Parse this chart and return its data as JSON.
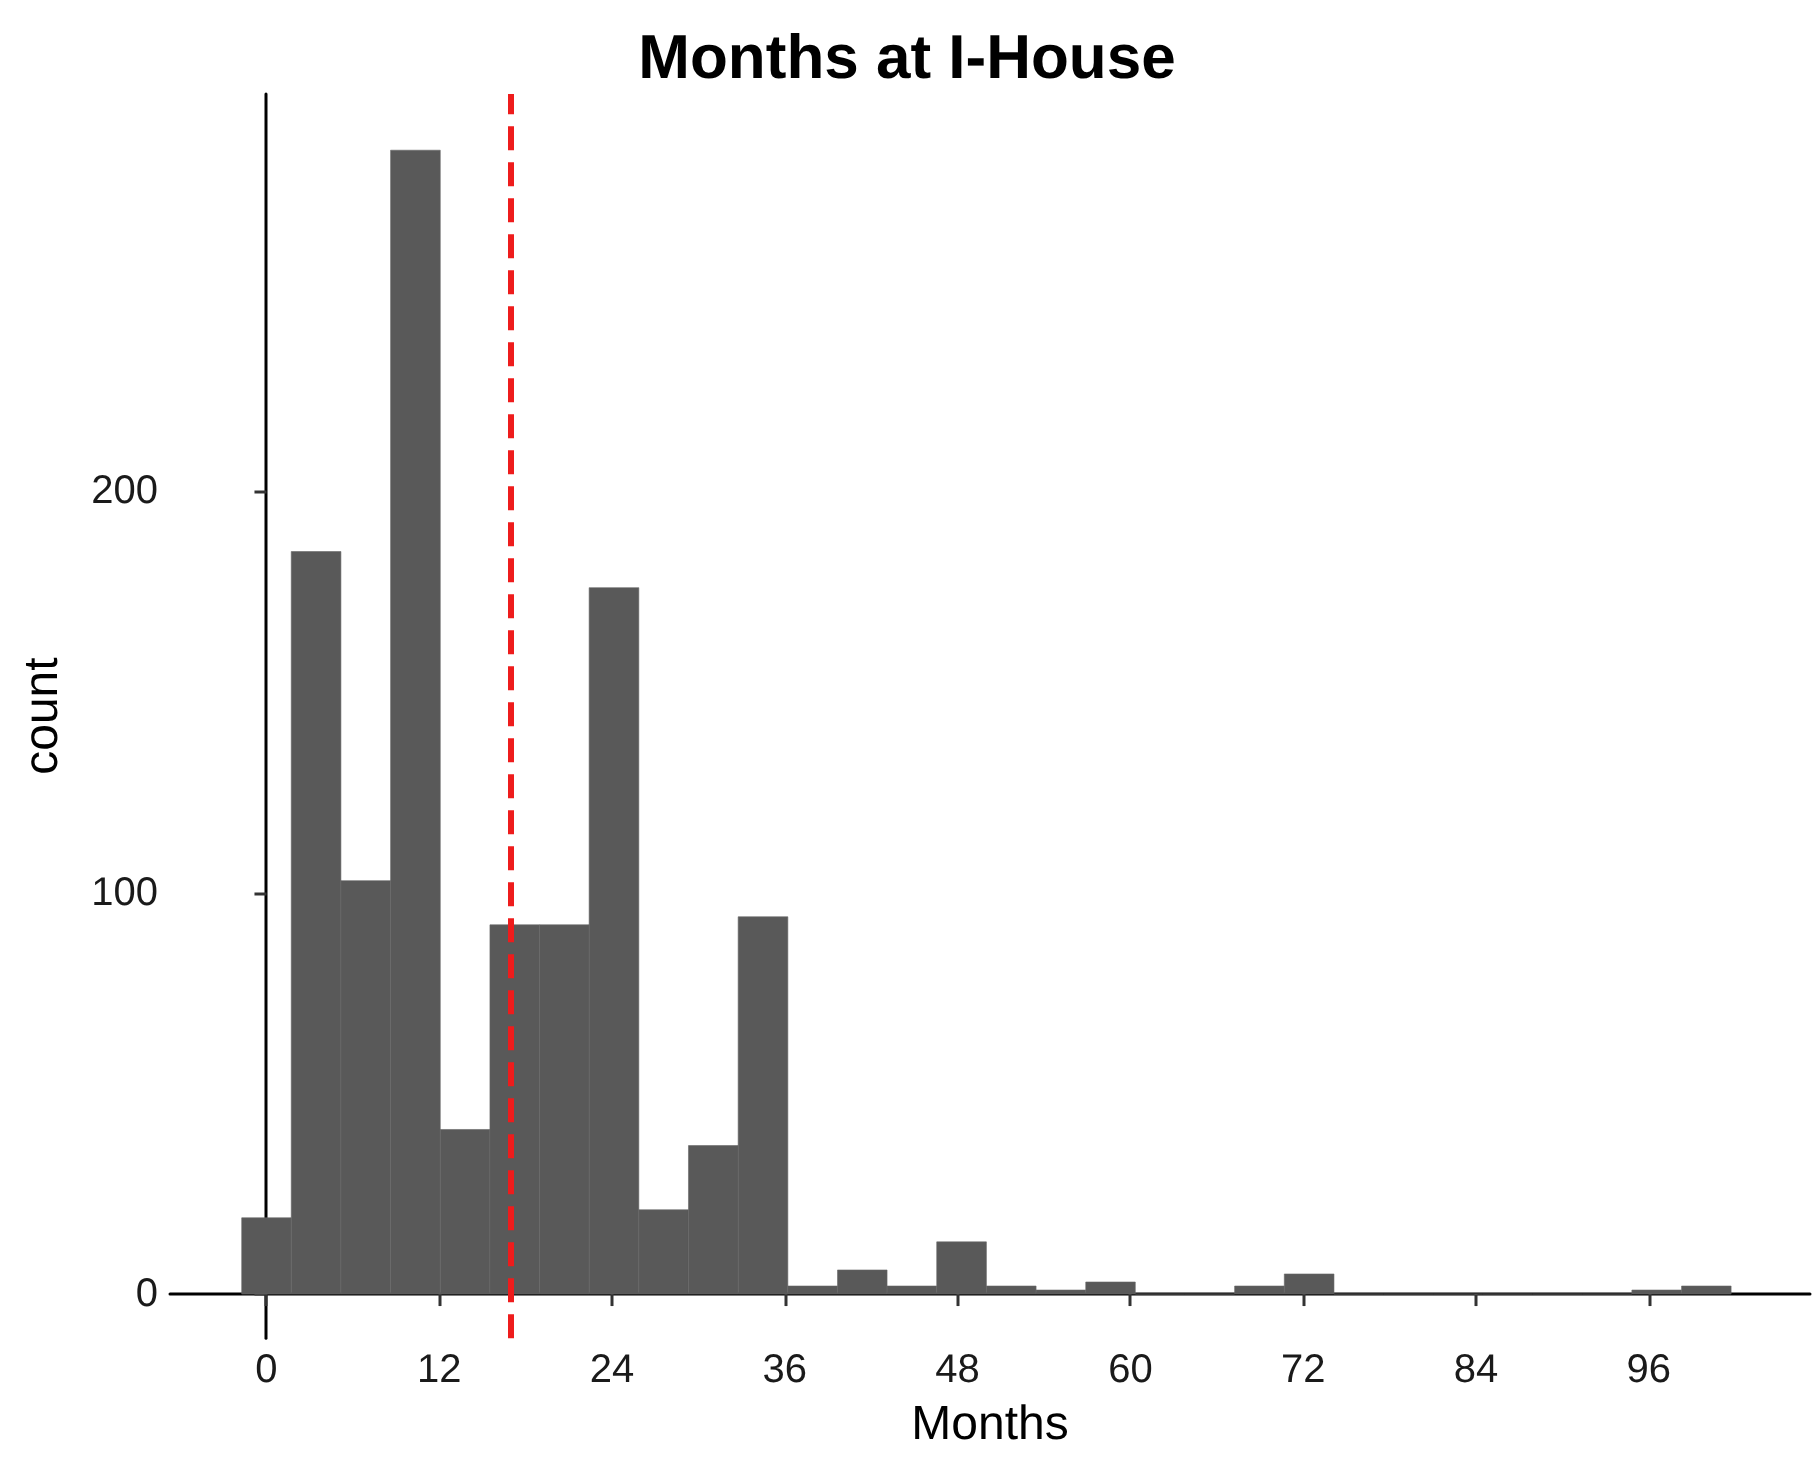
{
  "chart_data": {
    "type": "histogram",
    "title": "Months at I-House",
    "xlabel": "Months",
    "ylabel": "count",
    "bins": [
      -1.72,
      1.72,
      5.17,
      8.62,
      12.07,
      15.52,
      18.97,
      22.41,
      25.86,
      29.31,
      32.76,
      36.21,
      39.66,
      43.1,
      46.55,
      50,
      53.45,
      56.9,
      60.34,
      63.79,
      67.24,
      70.69,
      74.14,
      77.59,
      81.03,
      84.48,
      87.93,
      91.38,
      94.83,
      98.28,
      101.72
    ],
    "values": [
      19,
      185,
      103,
      285,
      41,
      92,
      92,
      176,
      21,
      37,
      94,
      2,
      6,
      2,
      13,
      2,
      1,
      3,
      0,
      0,
      2,
      5,
      0,
      0,
      0,
      0,
      0,
      0,
      1,
      2
    ],
    "color": "#595959",
    "xlim": [
      -6.7,
      107.2
    ],
    "xticks": [
      0,
      12,
      24,
      36,
      48,
      60,
      72,
      84,
      96
    ],
    "ylim": [
      -11,
      299
    ],
    "yticks": [
      0,
      100,
      200
    ],
    "ref_lines": [
      {
        "axis": "x",
        "value": 17,
        "color": "#ee1c1c",
        "line_style": "dashed"
      }
    ]
  }
}
